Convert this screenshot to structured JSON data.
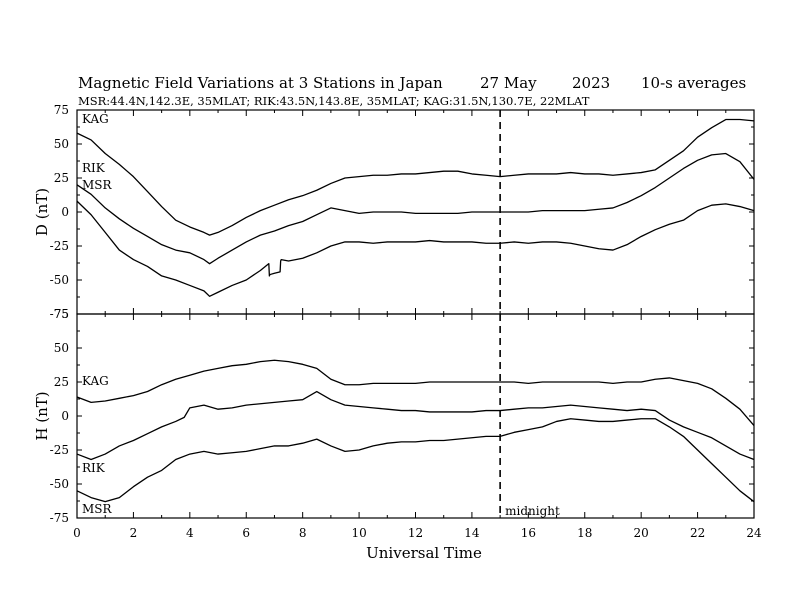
{
  "header": {
    "title": "Magnetic Field Variations at 3 Stations in Japan",
    "date": "27 May",
    "year": "2023",
    "averaging": "10-s averages",
    "stations_line": "MSR:44.4N,142.3E, 35MLAT;  RIK:43.5N,143.8E, 35MLAT;  KAG:31.5N,130.7E, 22MLAT"
  },
  "chart_data": [
    {
      "type": "line",
      "panel": "D",
      "ylabel": "D (nT)",
      "ylim": [
        -75,
        75
      ],
      "yticks": [
        "75",
        "50",
        "25",
        "0",
        "-25",
        "-50",
        "-75"
      ],
      "xlim": [
        0,
        24
      ],
      "grid": false,
      "series": [
        {
          "name": "KAG",
          "x": [
            0,
            0.5,
            1,
            1.5,
            2,
            2.5,
            3,
            3.5,
            4,
            4.5,
            4.7,
            5,
            5.5,
            6,
            6.5,
            7,
            7.5,
            8,
            8.5,
            9,
            9.5,
            10,
            10.5,
            11,
            11.5,
            12,
            12.5,
            13,
            13.5,
            14,
            14.5,
            15,
            15.5,
            16,
            16.5,
            17,
            17.5,
            18,
            18.5,
            19,
            19.5,
            20,
            20.5,
            21,
            21.5,
            22,
            22.5,
            23,
            23.5,
            24
          ],
          "values": [
            58,
            53,
            43,
            35,
            26,
            15,
            4,
            -6,
            -11,
            -15,
            -17,
            -15,
            -10,
            -4,
            1,
            5,
            9,
            12,
            16,
            21,
            25,
            26,
            27,
            27,
            28,
            28,
            29,
            30,
            30,
            28,
            27,
            26,
            27,
            28,
            28,
            28,
            29,
            28,
            28,
            27,
            28,
            29,
            31,
            38,
            45,
            55,
            62,
            68,
            68,
            67
          ]
        },
        {
          "name": "RIK",
          "x": [
            0,
            0.5,
            1,
            1.5,
            2,
            2.5,
            3,
            3.5,
            4,
            4.5,
            4.7,
            5,
            5.5,
            6,
            6.5,
            7,
            7.5,
            8,
            8.5,
            9,
            9.5,
            10,
            10.5,
            11,
            11.5,
            12,
            12.5,
            13,
            13.5,
            14,
            14.5,
            15,
            15.5,
            16,
            16.5,
            17,
            17.5,
            18,
            18.5,
            19,
            19.5,
            20,
            20.5,
            21,
            21.5,
            22,
            22.5,
            23,
            23.5,
            24
          ],
          "values": [
            20,
            13,
            3,
            -5,
            -12,
            -18,
            -24,
            -28,
            -30,
            -35,
            -38,
            -34,
            -28,
            -22,
            -17,
            -14,
            -10,
            -7,
            -2,
            3,
            1,
            -1,
            0,
            0,
            0,
            -1,
            -1,
            -1,
            -1,
            0,
            0,
            0,
            0,
            0,
            1,
            1,
            1,
            1,
            2,
            3,
            7,
            12,
            18,
            25,
            32,
            38,
            42,
            43,
            37,
            24
          ]
        },
        {
          "name": "MSR",
          "x": [
            0,
            0.5,
            1,
            1.5,
            2,
            2.5,
            3,
            3.5,
            4,
            4.5,
            4.7,
            5,
            5.5,
            6,
            6.5,
            6.8,
            6.82,
            6.84,
            7,
            7.2,
            7.22,
            7.24,
            7.5,
            8,
            8.5,
            9,
            9.5,
            10,
            10.5,
            11,
            11.5,
            12,
            12.5,
            13,
            13.5,
            14,
            14.5,
            15,
            15.5,
            16,
            16.5,
            17,
            17.5,
            18,
            18.5,
            19,
            19.5,
            20,
            20.5,
            21,
            21.5,
            22,
            22.5,
            23,
            23.5,
            24
          ],
          "values": [
            8,
            -2,
            -15,
            -28,
            -35,
            -40,
            -47,
            -50,
            -54,
            -58,
            -62,
            -59,
            -54,
            -50,
            -43,
            -38,
            -47,
            -46,
            -45,
            -44,
            -36,
            -35,
            -36,
            -34,
            -30,
            -25,
            -22,
            -22,
            -23,
            -22,
            -22,
            -22,
            -21,
            -22,
            -22,
            -22,
            -23,
            -23,
            -22,
            -23,
            -22,
            -22,
            -23,
            -25,
            -27,
            -28,
            -24,
            -18,
            -13,
            -9,
            -6,
            1,
            5,
            6,
            4,
            1
          ]
        }
      ],
      "annotations": [
        {
          "text": "midnight",
          "x": 15
        }
      ]
    },
    {
      "type": "line",
      "panel": "H",
      "ylabel": "H (nT)",
      "xlabel": "Universal Time",
      "ylim": [
        -75,
        75
      ],
      "yticks": [
        "75",
        "50",
        "25",
        "0",
        "-25",
        "-50",
        "-75"
      ],
      "xlim": [
        0,
        24
      ],
      "xticks": [
        "0",
        "2",
        "4",
        "6",
        "8",
        "10",
        "12",
        "14",
        "16",
        "18",
        "20",
        "22",
        "24"
      ],
      "grid": false,
      "series": [
        {
          "name": "KAG",
          "x": [
            0,
            0.5,
            1,
            1.5,
            2,
            2.5,
            3,
            3.5,
            4,
            4.5,
            5,
            5.5,
            6,
            6.5,
            7,
            7.5,
            8,
            8.5,
            9,
            9.5,
            10,
            10.5,
            11,
            11.5,
            12,
            12.5,
            13,
            13.5,
            14,
            14.5,
            15,
            15.5,
            16,
            16.5,
            17,
            17.5,
            18,
            18.5,
            19,
            19.5,
            20,
            20.5,
            21,
            21.5,
            22,
            22.5,
            23,
            23.5,
            24
          ],
          "values": [
            14,
            10,
            11,
            13,
            15,
            18,
            23,
            27,
            30,
            33,
            35,
            37,
            38,
            40,
            41,
            40,
            38,
            35,
            27,
            23,
            23,
            24,
            24,
            24,
            24,
            25,
            25,
            25,
            25,
            25,
            25,
            25,
            24,
            25,
            25,
            25,
            25,
            25,
            24,
            25,
            25,
            27,
            28,
            26,
            24,
            20,
            13,
            5,
            -7
          ]
        },
        {
          "name": "RIK",
          "x": [
            0,
            0.5,
            1,
            1.5,
            2,
            2.5,
            3,
            3.5,
            3.8,
            4,
            4.5,
            5,
            5.5,
            6,
            6.5,
            7,
            7.5,
            8,
            8.5,
            9,
            9.5,
            10,
            10.5,
            11,
            11.5,
            12,
            12.5,
            13,
            13.5,
            14,
            14.5,
            15,
            15.5,
            16,
            16.5,
            17,
            17.5,
            18,
            18.5,
            19,
            19.5,
            20,
            20.5,
            21,
            21.5,
            22,
            22.5,
            23,
            23.5,
            24
          ],
          "values": [
            -28,
            -32,
            -28,
            -22,
            -18,
            -13,
            -8,
            -4,
            -1,
            6,
            8,
            5,
            6,
            8,
            9,
            10,
            11,
            12,
            18,
            12,
            8,
            7,
            6,
            5,
            4,
            4,
            3,
            3,
            3,
            3,
            4,
            4,
            5,
            6,
            6,
            7,
            8,
            7,
            6,
            5,
            4,
            5,
            4,
            -3,
            -8,
            -12,
            -16,
            -22,
            -28,
            -32
          ]
        },
        {
          "name": "MSR",
          "x": [
            0,
            0.5,
            1,
            1.5,
            2,
            2.5,
            3,
            3.5,
            4,
            4.5,
            5,
            5.5,
            6,
            6.5,
            7,
            7.5,
            8,
            8.5,
            9,
            9.5,
            10,
            10.5,
            11,
            11.5,
            12,
            12.5,
            13,
            13.5,
            14,
            14.5,
            15,
            15.5,
            16,
            16.5,
            17,
            17.5,
            18,
            18.5,
            19,
            19.5,
            20,
            20.5,
            21,
            21.5,
            22,
            22.5,
            23,
            23.5,
            24
          ],
          "values": [
            -55,
            -60,
            -63,
            -60,
            -52,
            -45,
            -40,
            -32,
            -28,
            -26,
            -28,
            -27,
            -26,
            -24,
            -22,
            -22,
            -20,
            -17,
            -22,
            -26,
            -25,
            -22,
            -20,
            -19,
            -19,
            -18,
            -18,
            -17,
            -16,
            -15,
            -15,
            -12,
            -10,
            -8,
            -4,
            -2,
            -3,
            -4,
            -4,
            -3,
            -2,
            -2,
            -8,
            -15,
            -25,
            -35,
            -45,
            -55,
            -63
          ]
        }
      ]
    }
  ]
}
